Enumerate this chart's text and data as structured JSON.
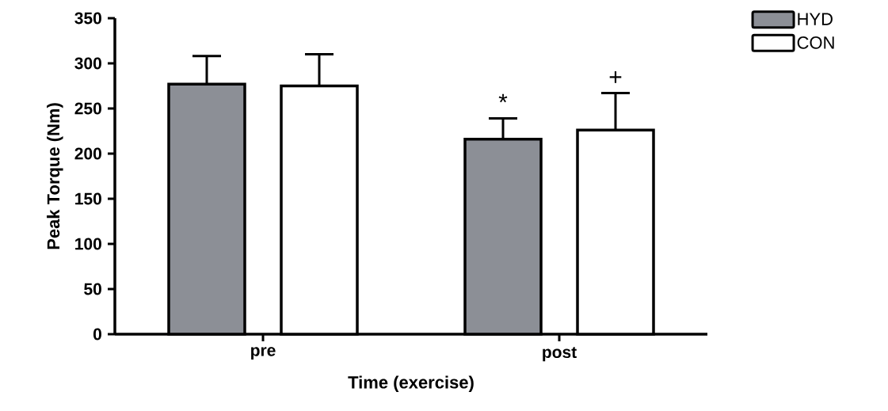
{
  "chart_data": {
    "type": "bar",
    "xlabel": "Time  (exercise)",
    "ylabel": "Peak Torque (Nm)",
    "categories": [
      "pre",
      "post"
    ],
    "series": [
      {
        "name": "HYD",
        "color": "#8c8f96",
        "values": [
          277,
          216
        ],
        "errors": [
          [
            277,
            308
          ],
          [
            216,
            239
          ]
        ]
      },
      {
        "name": "CON",
        "color": "#ffffff",
        "values": [
          275,
          226
        ],
        "errors": [
          [
            275,
            310
          ],
          [
            226,
            267
          ]
        ]
      }
    ],
    "ylim": [
      0,
      350
    ],
    "yticks": [
      0,
      50,
      100,
      150,
      200,
      250,
      300,
      350
    ],
    "legend": "top right",
    "annotations": [
      "*",
      "+"
    ]
  }
}
